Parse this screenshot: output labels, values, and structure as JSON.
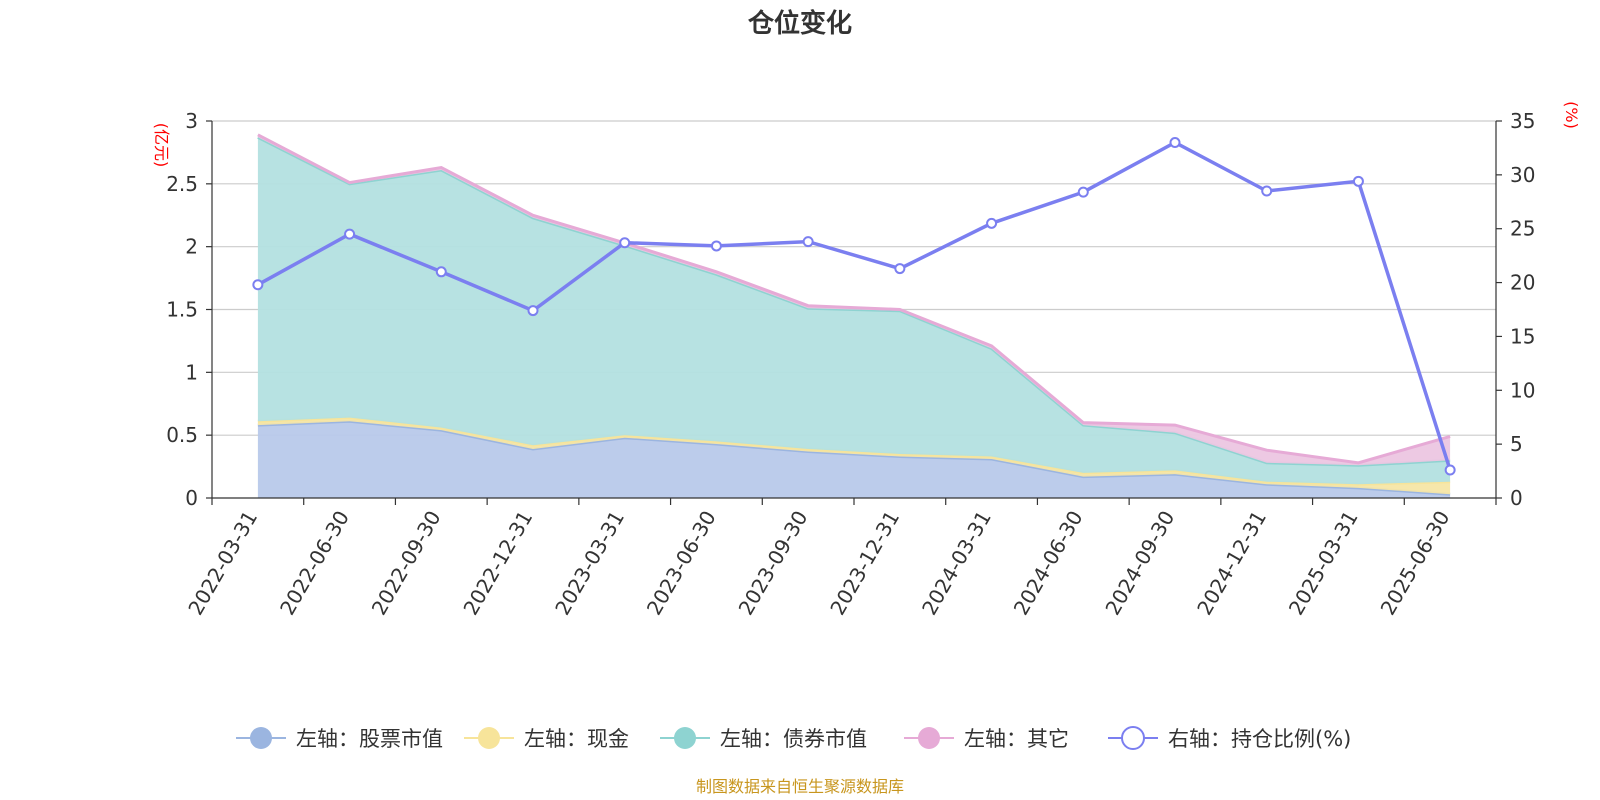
{
  "chart_data": {
    "type": "area",
    "title": "仓位变化",
    "x": [
      "2022-03-31",
      "2022-06-30",
      "2022-09-30",
      "2022-12-31",
      "2023-03-31",
      "2023-06-30",
      "2023-09-30",
      "2023-12-31",
      "2024-03-31",
      "2024-06-30",
      "2024-09-30",
      "2024-12-31",
      "2025-03-31",
      "2025-06-30"
    ],
    "left_axis": {
      "unit_label": "(亿元)",
      "ylim": [
        0,
        3
      ],
      "ticks": [
        "0",
        "0.5",
        "1",
        "1.5",
        "2",
        "2.5",
        "3"
      ]
    },
    "right_axis": {
      "unit_label": "(%)",
      "ylim": [
        0,
        35
      ],
      "ticks": [
        "0",
        "5",
        "10",
        "15",
        "20",
        "25",
        "30",
        "35"
      ]
    },
    "stacked": true,
    "series": [
      {
        "name": "左轴：股票市值",
        "axis": "left",
        "type": "area",
        "color": "#9bb5e0",
        "fill": "#b8c9ea",
        "values": [
          0.58,
          0.61,
          0.54,
          0.39,
          0.48,
          0.43,
          0.37,
          0.33,
          0.31,
          0.17,
          0.19,
          0.11,
          0.08,
          0.03
        ]
      },
      {
        "name": "左轴：现金",
        "axis": "left",
        "type": "area",
        "color": "#f7e49a",
        "fill": "#f5e6a6",
        "values": [
          0.03,
          0.03,
          0.02,
          0.03,
          0.02,
          0.02,
          0.02,
          0.02,
          0.02,
          0.03,
          0.03,
          0.02,
          0.03,
          0.1
        ]
      },
      {
        "name": "左轴：债券市值",
        "axis": "left",
        "type": "area",
        "color": "#8ed3d1",
        "fill": "#b3e0e0",
        "values": [
          2.26,
          1.86,
          2.05,
          1.81,
          1.51,
          1.33,
          1.12,
          1.14,
          0.86,
          0.38,
          0.3,
          0.15,
          0.15,
          0.17
        ]
      },
      {
        "name": "左轴：其它",
        "axis": "left",
        "type": "area",
        "color": "#e6aad6",
        "fill": "#ecc6e1",
        "values": [
          0.02,
          0.01,
          0.02,
          0.02,
          0.02,
          0.02,
          0.02,
          0.01,
          0.02,
          0.02,
          0.06,
          0.1,
          0.02,
          0.19
        ]
      },
      {
        "name": "右轴：持仓比例(%)",
        "axis": "right",
        "type": "line",
        "color": "#7b7ff0",
        "values": [
          19.8,
          24.5,
          21.0,
          17.4,
          23.7,
          23.4,
          23.8,
          21.3,
          25.5,
          28.4,
          33.0,
          28.5,
          29.4,
          2.6
        ]
      }
    ],
    "legend": {
      "position": "bottom-center"
    },
    "grid": true,
    "source": "制图数据来自恒生聚源数据库"
  }
}
